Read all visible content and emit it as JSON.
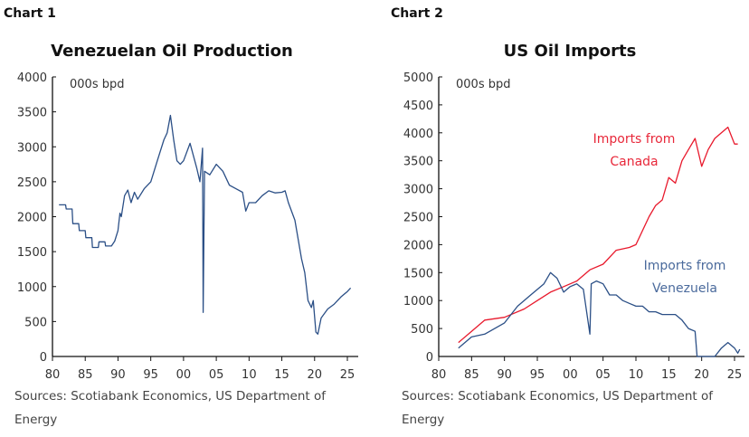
{
  "chart_data": [
    {
      "type": "line",
      "label": "Chart 1",
      "title": "Venezuelan Oil Production",
      "unit_label": "000s bpd",
      "xlabel": "",
      "ylabel": "",
      "xlim": [
        1980,
        2026
      ],
      "ylim": [
        0,
        4000
      ],
      "x_ticks": [
        "80",
        "85",
        "90",
        "95",
        "00",
        "05",
        "10",
        "15",
        "20",
        "25"
      ],
      "y_ticks": [
        "0",
        "500",
        "1000",
        "1500",
        "2000",
        "2500",
        "3000",
        "3500",
        "4000"
      ],
      "grid": false,
      "source": "Sources: Scotiabank Economics, US Department of Energy",
      "series": [
        {
          "color": "#2b4f86",
          "x": [
            1981,
            1982,
            1982.1,
            1983,
            1983.1,
            1984,
            1984.1,
            1985,
            1985.1,
            1986,
            1986.1,
            1987,
            1987.1,
            1988,
            1988.1,
            1989,
            1989.5,
            1990,
            1990.3,
            1990.5,
            1991,
            1991.5,
            1992,
            1992.5,
            1993,
            1994,
            1995,
            1996,
            1997,
            1997.5,
            1998,
            1998.5,
            1999,
            1999.5,
            2000,
            2001,
            2002,
            2002.5,
            2002.9,
            2003.0,
            2003.2,
            2004,
            2005,
            2006,
            2007,
            2008,
            2009,
            2009.5,
            2010,
            2011,
            2012,
            2013,
            2014,
            2015,
            2015.5,
            2016,
            2017,
            2018,
            2018.5,
            2019,
            2019.5,
            2019.8,
            2020.2,
            2020.5,
            2021,
            2022,
            2023,
            2024,
            2025,
            2025.5
          ],
          "y": [
            2170,
            2170,
            2110,
            2110,
            1900,
            1900,
            1800,
            1800,
            1700,
            1700,
            1560,
            1560,
            1640,
            1640,
            1580,
            1580,
            1650,
            1800,
            2050,
            2000,
            2300,
            2380,
            2200,
            2350,
            2250,
            2400,
            2500,
            2800,
            3100,
            3200,
            3450,
            3100,
            2800,
            2750,
            2800,
            3050,
            2700,
            2500,
            2980,
            630,
            2650,
            2600,
            2750,
            2650,
            2450,
            2400,
            2350,
            2080,
            2200,
            2200,
            2300,
            2370,
            2340,
            2350,
            2370,
            2200,
            1950,
            1400,
            1200,
            800,
            700,
            800,
            350,
            320,
            550,
            680,
            750,
            850,
            930,
            980
          ]
        }
      ]
    },
    {
      "type": "line",
      "label": "Chart 2",
      "title": "US Oil Imports",
      "unit_label": "000s bpd",
      "xlabel": "",
      "ylabel": "",
      "xlim": [
        1980,
        2026
      ],
      "ylim": [
        0,
        5000
      ],
      "x_ticks": [
        "80",
        "85",
        "90",
        "95",
        "00",
        "05",
        "10",
        "15",
        "20",
        "25"
      ],
      "y_ticks": [
        "0",
        "500",
        "1000",
        "1500",
        "2000",
        "2500",
        "3000",
        "3500",
        "4000",
        "4500",
        "5000"
      ],
      "grid": false,
      "source": "Sources: Scotiabank Economics, US Department of Energy",
      "series": [
        {
          "name": "Imports from Canada",
          "name_lines": [
            "Imports from",
            "Canada"
          ],
          "color": "#e8192c",
          "x": [
            1983,
            1985,
            1987,
            1990,
            1993,
            1995,
            1997,
            1999,
            2001,
            2003,
            2005,
            2007,
            2009,
            2010,
            2012,
            2013,
            2014,
            2015,
            2016,
            2017,
            2018,
            2019,
            2020,
            2021,
            2022,
            2023,
            2024,
            2025,
            2025.5
          ],
          "y": [
            250,
            450,
            650,
            700,
            850,
            1000,
            1150,
            1250,
            1350,
            1550,
            1650,
            1900,
            1950,
            2000,
            2500,
            2700,
            2800,
            3200,
            3100,
            3500,
            3700,
            3900,
            3400,
            3700,
            3900,
            4000,
            4100,
            3800,
            3800
          ]
        },
        {
          "name": "Imports from Venezuela",
          "name_lines": [
            "Imports from",
            "Venezuela"
          ],
          "color": "#2b4f86",
          "x": [
            1983,
            1985,
            1987,
            1990,
            1992,
            1994,
            1996,
            1997,
            1998,
            1999,
            2000,
            2001,
            2002,
            2003,
            2003.2,
            2004,
            2005,
            2006,
            2007,
            2008,
            2009,
            2010,
            2011,
            2012,
            2013,
            2014,
            2015,
            2016,
            2017,
            2018,
            2019,
            2019.3,
            2022,
            2023,
            2024,
            2025,
            2025.5,
            2025.8
          ],
          "y": [
            150,
            350,
            400,
            600,
            900,
            1100,
            1300,
            1500,
            1400,
            1150,
            1250,
            1300,
            1200,
            400,
            1300,
            1350,
            1300,
            1100,
            1100,
            1000,
            950,
            900,
            900,
            800,
            800,
            750,
            750,
            750,
            650,
            500,
            450,
            0,
            0,
            150,
            250,
            150,
            60,
            130
          ]
        }
      ]
    }
  ]
}
